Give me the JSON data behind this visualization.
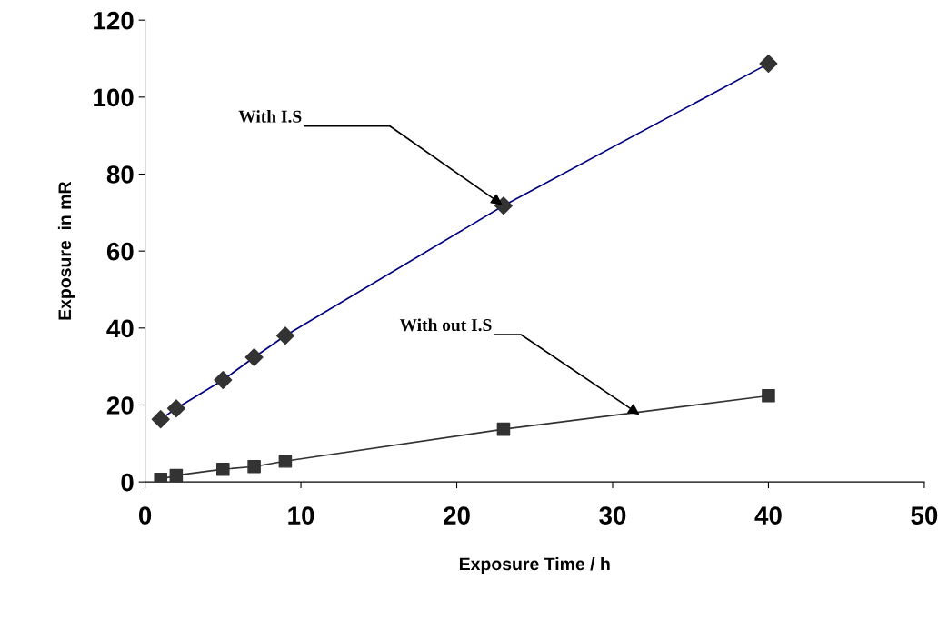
{
  "chart_data": {
    "type": "scatter",
    "xlabel": "Exposure Time / h",
    "ylabel": "Exposure  in mR",
    "xlim": [
      0,
      50
    ],
    "ylim": [
      0,
      120
    ],
    "xticks": [
      0,
      10,
      20,
      30,
      40,
      50
    ],
    "yticks": [
      0,
      20,
      40,
      60,
      80,
      100,
      120
    ],
    "grid": false,
    "series": [
      {
        "type": "line",
        "color": "#000080",
        "marker": "none",
        "x": [
          1,
          2,
          5,
          7,
          9,
          23,
          40
        ],
        "values": [
          16.3,
          19.1,
          26.5,
          32.4,
          38.0,
          71.8,
          108.7
        ]
      },
      {
        "color": "#333333",
        "marker": "diamond",
        "x": [
          1,
          2,
          5,
          7,
          9,
          23,
          40
        ],
        "values": [
          16.3,
          19.1,
          26.5,
          32.4,
          38.0,
          71.8,
          108.7
        ]
      },
      {
        "type": "line",
        "color": "#333333",
        "marker": "none",
        "x": [
          1,
          2,
          5,
          7,
          9,
          23,
          40
        ],
        "values": [
          0.7,
          1.7,
          3.3,
          4.0,
          5.4,
          13.7,
          22.4
        ]
      },
      {
        "color": "#333333",
        "marker": "square",
        "x": [
          1,
          2,
          5,
          7,
          9,
          23,
          40
        ],
        "values": [
          0.7,
          1.7,
          3.3,
          4.0,
          5.4,
          13.7,
          22.4
        ]
      }
    ],
    "annotations": [
      {
        "text": "With I.S",
        "x": 23,
        "y": 71.8
      },
      {
        "text": "With out I.S",
        "x": 31.8,
        "y": 17.3
      }
    ]
  }
}
